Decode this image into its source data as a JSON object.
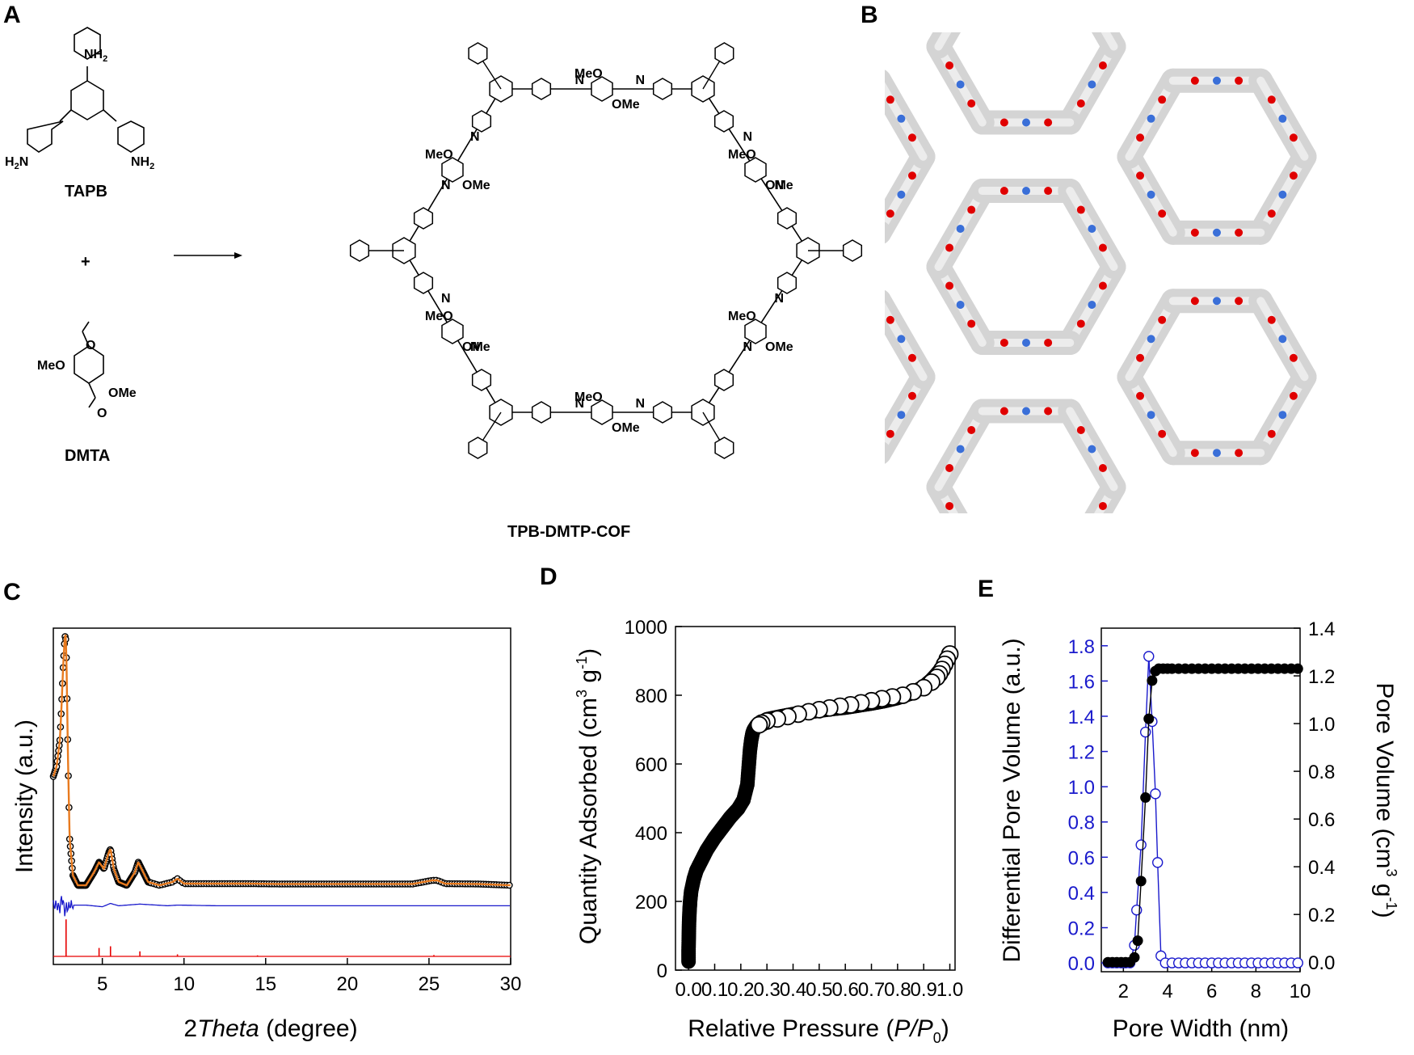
{
  "panels": {
    "A": {
      "label": "A",
      "monomer1": {
        "name": "TAPB",
        "group": "NH",
        "sub": "2",
        "prefix": "H",
        "prefix_sub": "2",
        "prefix_tail": "N"
      },
      "plus": "+",
      "monomer2": {
        "name": "DMTA",
        "meo": "MeO",
        "ome": "OMe",
        "carbonyl": "O"
      },
      "product": {
        "name": "TPB-DMTP-COF",
        "meo": "MeO",
        "ome": "OMe",
        "imine": "N"
      }
    },
    "B": {
      "label": "B",
      "atom_colors": {
        "carbon": "#d4d4d4",
        "oxygen": "#e00000",
        "nitrogen": "#3a6fd8"
      }
    },
    "C": {
      "label": "C"
    },
    "D": {
      "label": "D"
    },
    "E": {
      "label": "E"
    }
  },
  "chart_data": [
    {
      "panel": "C",
      "type": "line",
      "xlabel_prefix": "2",
      "xlabel_italic": "Theta",
      "xlabel_suffix": " (degree)",
      "ylabel": "Intensity (a.u.)",
      "xlim": [
        2,
        30
      ],
      "xticks": [
        "5",
        "10",
        "15",
        "20",
        "25",
        "30"
      ],
      "y_scale": "arbitrary (no tick labels)",
      "series": [
        {
          "role": "experimental",
          "marker": "open-circle",
          "color": "#000000",
          "x": [
            2.0,
            2.2,
            2.4,
            2.5,
            2.6,
            2.7,
            2.75,
            2.8,
            2.9,
            3.0,
            3.2,
            3.5,
            4.0,
            4.5,
            4.8,
            5.1,
            5.4,
            5.5,
            5.7,
            6.0,
            6.5,
            7.0,
            7.2,
            7.4,
            7.8,
            8.5,
            9.3,
            9.6,
            10.0,
            12,
            14,
            16,
            18,
            20,
            22,
            24,
            25.2,
            25.5,
            26,
            28,
            30
          ],
          "y": [
            0.57,
            0.6,
            0.68,
            0.78,
            0.9,
            0.99,
            1.0,
            0.93,
            0.62,
            0.38,
            0.27,
            0.24,
            0.24,
            0.28,
            0.31,
            0.29,
            0.34,
            0.35,
            0.29,
            0.25,
            0.24,
            0.28,
            0.31,
            0.29,
            0.25,
            0.24,
            0.25,
            0.26,
            0.245,
            0.245,
            0.245,
            0.244,
            0.244,
            0.244,
            0.244,
            0.244,
            0.255,
            0.255,
            0.245,
            0.244,
            0.24
          ]
        },
        {
          "role": "refined",
          "color": "#e87a1e",
          "line": true
        },
        {
          "role": "difference",
          "color": "#1a1acc",
          "x": [
            2.0,
            2.2,
            2.4,
            2.5,
            2.6,
            2.7,
            2.8,
            2.9,
            3.0,
            3.2,
            4.0,
            5.0,
            5.5,
            6,
            7.3,
            9,
            9.6,
            12,
            20,
            30
          ],
          "y": [
            0.18,
            0.18,
            0.17,
            0.2,
            0.19,
            0.16,
            0.175,
            0.17,
            0.18,
            0.18,
            0.18,
            0.175,
            0.185,
            0.178,
            0.183,
            0.178,
            0.18,
            0.178,
            0.178,
            0.178
          ]
        },
        {
          "role": "simulated",
          "color": "#e60000",
          "sticks": [
            [
              2.78,
              0.11
            ],
            [
              4.8,
              0.025
            ],
            [
              5.5,
              0.03
            ],
            [
              7.3,
              0.015
            ],
            [
              9.6,
              0.006
            ],
            [
              14.5,
              0.003
            ],
            [
              25.3,
              0.004
            ]
          ],
          "baseline": 0.0
        }
      ]
    },
    {
      "panel": "D",
      "type": "scatter",
      "xlabel": "Relative Pressure (",
      "xlabel_italic": "P/P",
      "xlabel_sub": "0",
      "xlabel_end": ")",
      "ylabel": "Quantity Adsorbed (cm",
      "ylabel_sup1": "3",
      "ylabel_mid": " g",
      "ylabel_sup2": "-1",
      "ylabel_end": ")",
      "xlim": [
        -0.05,
        1.02
      ],
      "ylim": [
        0,
        1000
      ],
      "xticks": [
        "0.0",
        "0.1",
        "0.2",
        "0.3",
        "0.4",
        "0.5",
        "0.6",
        "0.7",
        "0.8",
        "0.9",
        "1.0"
      ],
      "yticks": [
        "0",
        "200",
        "400",
        "600",
        "800",
        "1000"
      ],
      "series": [
        {
          "role": "adsorption",
          "marker": "filled-circle",
          "color": "#000000",
          "x": [
            0.0,
            0.0,
            0.001,
            0.002,
            0.004,
            0.006,
            0.01,
            0.02,
            0.03,
            0.05,
            0.07,
            0.1,
            0.13,
            0.16,
            0.19,
            0.21,
            0.225,
            0.23,
            0.235,
            0.24,
            0.245,
            0.25,
            0.26,
            0.28,
            0.3,
            0.35,
            0.4,
            0.45,
            0.5,
            0.55,
            0.6,
            0.65,
            0.7,
            0.75,
            0.8,
            0.85,
            0.9,
            0.93,
            0.95,
            0.97,
            0.99,
            1.0
          ],
          "y": [
            25,
            60,
            100,
            140,
            175,
            200,
            230,
            265,
            290,
            320,
            350,
            385,
            415,
            445,
            470,
            495,
            540,
            590,
            640,
            670,
            690,
            700,
            712,
            722,
            730,
            738,
            745,
            750,
            755,
            760,
            764,
            770,
            776,
            783,
            792,
            805,
            825,
            845,
            862,
            880,
            905,
            920
          ]
        },
        {
          "role": "desorption",
          "marker": "open-circle",
          "color": "#000000",
          "x": [
            1.0,
            0.99,
            0.98,
            0.97,
            0.96,
            0.95,
            0.93,
            0.9,
            0.86,
            0.82,
            0.78,
            0.74,
            0.7,
            0.66,
            0.62,
            0.58,
            0.54,
            0.5,
            0.46,
            0.42,
            0.38,
            0.34,
            0.3,
            0.28,
            0.27
          ],
          "y": [
            920,
            905,
            890,
            875,
            862,
            852,
            838,
            822,
            810,
            800,
            795,
            790,
            784,
            778,
            772,
            768,
            763,
            758,
            752,
            745,
            738,
            731,
            725,
            719,
            714
          ]
        }
      ]
    },
    {
      "panel": "E",
      "type": "line",
      "xlabel": "Pore Width (nm)",
      "ylabel_left": "Differential Pore Volume (a.u.)",
      "ylabel_right": "Pore Volume (cm",
      "ylabel_right_sup1": "3",
      "ylabel_right_mid": " g",
      "ylabel_right_sup2": "-1",
      "ylabel_right_end": ")",
      "xlim": [
        1,
        10
      ],
      "ylim_left": [
        -0.05,
        1.9
      ],
      "ylim_right": [
        -0.04,
        1.4
      ],
      "xticks": [
        "2",
        "4",
        "6",
        "8",
        "10"
      ],
      "yticks_left": [
        "0.0",
        "0.2",
        "0.4",
        "0.6",
        "0.8",
        "1.0",
        "1.2",
        "1.4",
        "1.6",
        "1.8"
      ],
      "yticks_right": [
        "0.0",
        "0.2",
        "0.4",
        "0.6",
        "0.8",
        "1.0",
        "1.2",
        "1.4"
      ],
      "colors": {
        "left_axis": "#1a1acc",
        "right_axis": "#000000"
      },
      "series": [
        {
          "role": "differential",
          "axis": "left",
          "marker": "open-circle",
          "color": "#1a1acc",
          "x": [
            1.3,
            1.5,
            1.7,
            1.9,
            2.1,
            2.3,
            2.5,
            2.6,
            2.8,
            3.0,
            3.15,
            3.3,
            3.45,
            3.55,
            3.7,
            3.9,
            4.2,
            4.5,
            4.8,
            5.1,
            5.4,
            5.7,
            6.0,
            6.3,
            6.6,
            6.9,
            7.2,
            7.5,
            7.8,
            8.1,
            8.4,
            8.7,
            9.0,
            9.3,
            9.6,
            9.9
          ],
          "y": [
            0,
            0,
            0,
            0,
            0,
            0,
            0.1,
            0.3,
            0.67,
            1.31,
            1.74,
            1.37,
            0.96,
            0.57,
            0.04,
            0,
            0,
            0,
            0,
            0,
            0,
            0,
            0,
            0,
            0,
            0,
            0,
            0,
            0,
            0,
            0,
            0,
            0,
            0,
            0,
            0
          ]
        },
        {
          "role": "cumulative",
          "axis": "right",
          "marker": "filled-circle",
          "color": "#000000",
          "x": [
            1.3,
            1.5,
            1.7,
            1.9,
            2.1,
            2.3,
            2.5,
            2.65,
            2.8,
            3.0,
            3.15,
            3.3,
            3.45,
            3.6,
            3.8,
            4.0,
            4.2,
            4.5,
            4.8,
            5.1,
            5.4,
            5.7,
            6.0,
            6.3,
            6.6,
            6.9,
            7.2,
            7.5,
            7.8,
            8.1,
            8.4,
            8.7,
            9.0,
            9.3,
            9.6,
            9.9
          ],
          "y": [
            0,
            0,
            0,
            0,
            0,
            0,
            0.02,
            0.09,
            0.34,
            0.69,
            1.02,
            1.18,
            1.22,
            1.23,
            1.23,
            1.23,
            1.23,
            1.23,
            1.23,
            1.23,
            1.23,
            1.23,
            1.23,
            1.23,
            1.23,
            1.23,
            1.23,
            1.23,
            1.23,
            1.23,
            1.23,
            1.23,
            1.23,
            1.23,
            1.23,
            1.23
          ]
        }
      ]
    }
  ]
}
